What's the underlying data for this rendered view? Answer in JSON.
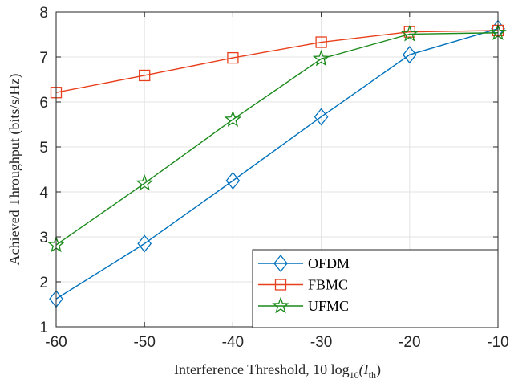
{
  "chart_data": {
    "type": "line",
    "x": [
      -60,
      -50,
      -40,
      -30,
      -20,
      -10
    ],
    "xlim": [
      -60,
      -10
    ],
    "ylim": [
      1,
      8
    ],
    "xticks": [
      -60,
      -50,
      -40,
      -30,
      -20,
      -10
    ],
    "yticks": [
      1,
      2,
      3,
      4,
      5,
      6,
      7,
      8
    ],
    "xtick_labels": [
      "-60",
      "-50",
      "-40",
      "-30",
      "-20",
      "-10"
    ],
    "ytick_labels": [
      "1",
      "2",
      "3",
      "4",
      "5",
      "6",
      "7",
      "8"
    ],
    "xlabel": "Interference Threshold, 10 log",
    "xlabel_sub": "10",
    "xlabel_arg_open": "(I",
    "xlabel_arg_sub": "th",
    "xlabel_arg_close": ")",
    "ylabel": "Achieved Throughput (bits/s/Hz)",
    "grid": true,
    "legend_position": "bottom-right",
    "series": [
      {
        "name": "OFDM",
        "color": "#0072BD",
        "marker": "diamond",
        "values": [
          1.62,
          2.85,
          4.25,
          5.67,
          7.05,
          7.63
        ]
      },
      {
        "name": "FBMC",
        "color": "#E8401C",
        "marker": "square",
        "values": [
          6.21,
          6.59,
          6.98,
          7.33,
          7.56,
          7.59
        ]
      },
      {
        "name": "UFMC",
        "color": "#1A8A1A",
        "marker": "star",
        "values": [
          2.82,
          4.19,
          5.61,
          6.96,
          7.51,
          7.54
        ]
      }
    ]
  }
}
